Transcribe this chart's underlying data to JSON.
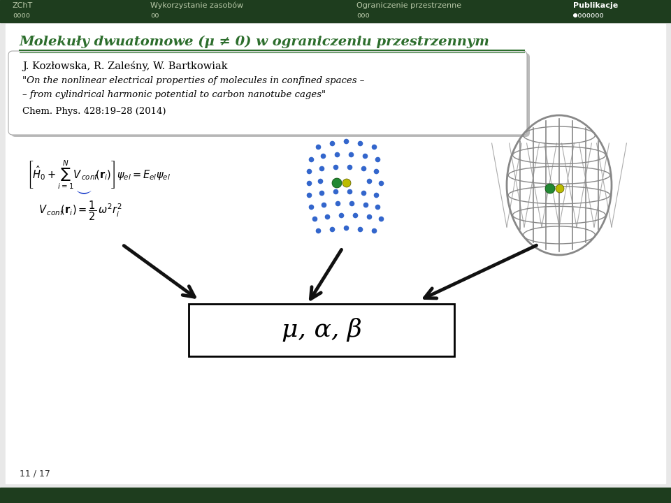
{
  "bg_color": "#e0e0e0",
  "slide_bg": "#e8e8e8",
  "header_bg": "#1e3d1e",
  "header_text_color": "#b8c8a8",
  "header_highlight_color": "#ffffff",
  "title_color": "#2d6e2d",
  "title_text": "Molekuły dwuatomowe (μ ≠ 0) w ograniczeniu przestrzennym",
  "authors": "J. Kozłowska, R. Zaleśny, W. Bartkowiak",
  "quote_line1": "\"On the nonlinear electrical properties of molecules in confined spaces –",
  "quote_line2": "– from cylindrical harmonic potential to carbon nanotube cages\"",
  "journal": "Chem. Phys. 428:19–28 (2014)",
  "page_num": "11 / 17",
  "header_items": [
    "ZChT",
    "Wykorzystanie zasobów",
    "Ograniczenie przestrzenne",
    "Publikacje"
  ],
  "header_dots_left": "oooo",
  "header_dots_mid1": "oo",
  "header_dots_mid2": "ooo",
  "header_dots_right": "●oooooo",
  "arrow_color": "#111111",
  "box_text": "μ, α, β",
  "blue_dot_color": "#3366cc",
  "green_mol_color": "#228833",
  "yellow_mol_color": "#bbbb00",
  "cnt_color": "#888888"
}
